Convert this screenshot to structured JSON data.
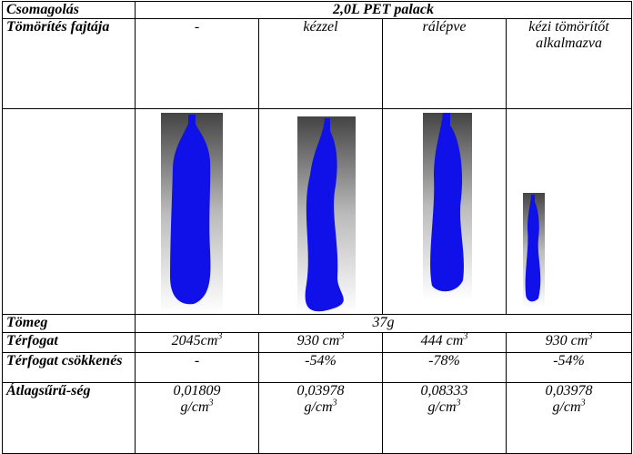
{
  "table": {
    "header": {
      "label": "Csomagolás",
      "title": "2,0L PET palack"
    },
    "compression": {
      "label": "Tömörítés fajtája",
      "values": [
        "-",
        "kézzel",
        "rálépve",
        "kézi tömörítőt alkalmazva"
      ]
    },
    "mass": {
      "label": "Tömeg",
      "value": "37g"
    },
    "volume": {
      "label": "Térfogat",
      "values": [
        {
          "text": "2045cm",
          "sup": "3"
        },
        {
          "text": "930 cm",
          "sup": "3"
        },
        {
          "text": "444 cm",
          "sup": "3"
        },
        {
          "text": "930 cm",
          "sup": "3"
        }
      ]
    },
    "reduction": {
      "label": "Térfogat csökkenés",
      "values": [
        "-",
        "-54%",
        "-78%",
        "-54%"
      ]
    },
    "density": {
      "label": "Átlagsűrű-ség",
      "values": [
        {
          "value": "0,01809",
          "unit": "g/cm",
          "sup": "3"
        },
        {
          "value": "0,03978",
          "unit": "g/cm",
          "sup": "3"
        },
        {
          "value": "0,08333",
          "unit": "g/cm",
          "sup": "3"
        },
        {
          "value": "0,03978",
          "unit": "g/cm",
          "sup": "3"
        }
      ]
    }
  }
}
